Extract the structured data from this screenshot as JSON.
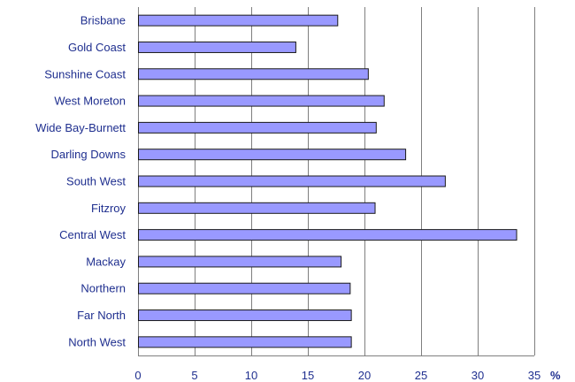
{
  "chart_data": {
    "type": "bar",
    "orientation": "horizontal",
    "categories": [
      "Brisbane",
      "Gold Coast",
      "Sunshine Coast",
      "West Moreton",
      "Wide Bay-Burnett",
      "Darling Downs",
      "South West",
      "Fitzroy",
      "Central West",
      "Mackay",
      "Northern",
      "Far North",
      "North West"
    ],
    "values": [
      17.6,
      13.9,
      20.3,
      21.7,
      21.0,
      23.6,
      27.1,
      20.9,
      33.4,
      17.9,
      18.7,
      18.8,
      18.8
    ],
    "xlim": [
      0,
      35
    ],
    "xticks": [
      0,
      5,
      10,
      15,
      20,
      25,
      30,
      35
    ],
    "xunit": "%",
    "grid": "vertical",
    "legend": "none",
    "bar_color": "#9999ff"
  }
}
